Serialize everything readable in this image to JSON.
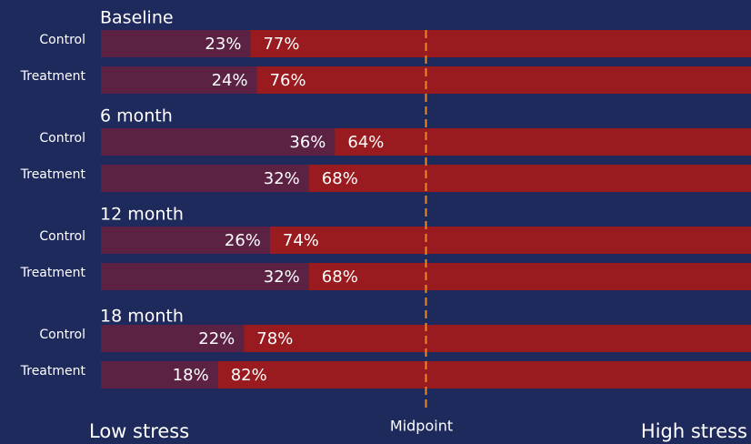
{
  "chart_data": {
    "type": "stacked-bar-horizontal",
    "groups": [
      "Baseline",
      "6 month",
      "12 month",
      "18 month"
    ],
    "categories": [
      "Control",
      "Treatment",
      "Control",
      "Treatment",
      "Control",
      "Treatment",
      "Control",
      "Treatment"
    ],
    "series": [
      {
        "name": "Low stress",
        "color": "#5c2243",
        "values": [
          23,
          24,
          36,
          32,
          26,
          32,
          22,
          18
        ],
        "value_labels": [
          "23%",
          "24%",
          "36%",
          "32%",
          "26%",
          "32%",
          "22%",
          "18%"
        ]
      },
      {
        "name": "High stress",
        "color": "#9a1b1f",
        "values": [
          77,
          76,
          64,
          68,
          74,
          68,
          78,
          82
        ],
        "value_labels": [
          "77%",
          "76%",
          "64%",
          "68%",
          "74%",
          "68%",
          "78%",
          "82%"
        ]
      }
    ],
    "xlim": [
      0,
      100
    ],
    "midpoint": {
      "label": "Midpoint",
      "value": 50,
      "color": "#e8892b"
    }
  }
}
